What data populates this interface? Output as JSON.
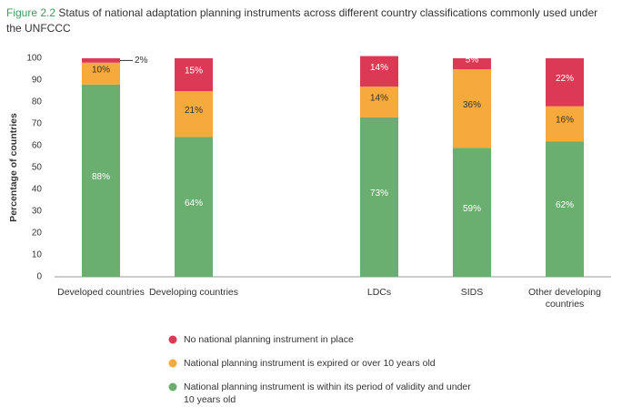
{
  "chart_data": {
    "type": "stacked_bar",
    "figure_label": "Figure 2.2",
    "title": "Status of national adaptation planning instruments across different country classifications commonly used under the UNFCCC",
    "y_label": "Percentage of countries",
    "categories": [
      "Developed countries",
      "Developing countries",
      null,
      "LDCs",
      "SIDS",
      "Other developing countries"
    ],
    "series": [
      {
        "name": "National planning instrument is within its period of validity and under 10 years old",
        "color": "#6aaf6f",
        "values": [
          88,
          64,
          null,
          73,
          59,
          62
        ],
        "value_labels": [
          "88%",
          "64%",
          null,
          "73%",
          "59%",
          "62%"
        ]
      },
      {
        "name": "National planning instrument is expired or over 10 years old",
        "color": "#f6aa3c",
        "values": [
          10,
          21,
          null,
          14,
          36,
          16
        ],
        "value_labels": [
          "10%",
          "21%",
          null,
          "14%",
          "36%",
          "16%"
        ]
      },
      {
        "name": "No national planning instrument in place",
        "color": "#dc3a54",
        "values": [
          2,
          15,
          null,
          14,
          5,
          22
        ],
        "value_labels": [
          "2%",
          "15%",
          null,
          "14%",
          "5%",
          "22%"
        ]
      }
    ],
    "ylim": [
      0,
      100
    ],
    "yticks": [
      0,
      10,
      20,
      30,
      40,
      50,
      60,
      70,
      80,
      90,
      100
    ],
    "grid": false
  }
}
